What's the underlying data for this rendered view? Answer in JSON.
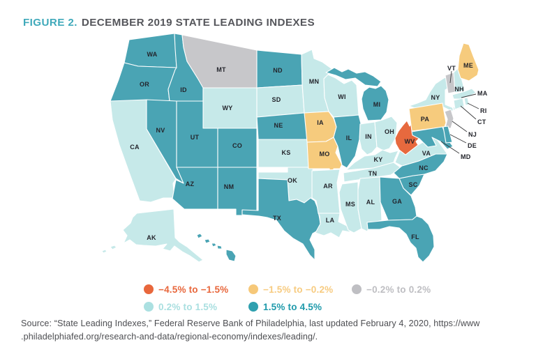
{
  "figure": {
    "label": "FIGURE 2.",
    "title": "DECEMBER 2019 STATE LEADING INDEXES",
    "accent_color": "#3fa9ba",
    "title_color": "#55565b"
  },
  "legend": {
    "items": [
      {
        "category": "neg2",
        "label": "−4.5% to −1.5%",
        "dot_color": "#e8673c",
        "text_color": "#e8673c"
      },
      {
        "category": "neg1",
        "label": "−1.5% to −0.2%",
        "dot_color": "#f6c879",
        "text_color": "#f7cb80"
      },
      {
        "category": "neutral",
        "label": "−0.2% to 0.2%",
        "dot_color": "#bfbfc3",
        "text_color": "#bebec2"
      },
      {
        "category": "pos1",
        "label": "0.2% to 1.5%",
        "dot_color": "#abe0e1",
        "text_color": "#a9dfe0"
      },
      {
        "category": "pos2",
        "label": "1.5% to 4.5%",
        "dot_color": "#2fa0af",
        "text_color": "#1f9aab"
      }
    ]
  },
  "map": {
    "state_fill_colors": {
      "neg2": "#e7693e",
      "neg1": "#f6cb7d",
      "neutral": "#c7c7ca",
      "pos1": "#c6e9e9",
      "pos2": "#4aa4b4"
    },
    "states": [
      {
        "abbr": "WA",
        "category": "pos2"
      },
      {
        "abbr": "OR",
        "category": "pos2"
      },
      {
        "abbr": "CA",
        "category": "pos1"
      },
      {
        "abbr": "ID",
        "category": "pos2"
      },
      {
        "abbr": "MT",
        "category": "neutral"
      },
      {
        "abbr": "WY",
        "category": "pos1"
      },
      {
        "abbr": "NV",
        "category": "pos2"
      },
      {
        "abbr": "UT",
        "category": "pos2"
      },
      {
        "abbr": "CO",
        "category": "pos2"
      },
      {
        "abbr": "AZ",
        "category": "pos2"
      },
      {
        "abbr": "NM",
        "category": "pos2"
      },
      {
        "abbr": "ND",
        "category": "pos2"
      },
      {
        "abbr": "SD",
        "category": "pos1"
      },
      {
        "abbr": "NE",
        "category": "pos2"
      },
      {
        "abbr": "KS",
        "category": "pos1"
      },
      {
        "abbr": "OK",
        "category": "pos1"
      },
      {
        "abbr": "TX",
        "category": "pos2"
      },
      {
        "abbr": "MN",
        "category": "pos1"
      },
      {
        "abbr": "IA",
        "category": "neg1"
      },
      {
        "abbr": "MO",
        "category": "neg1"
      },
      {
        "abbr": "AR",
        "category": "pos1"
      },
      {
        "abbr": "LA",
        "category": "pos1"
      },
      {
        "abbr": "WI",
        "category": "pos1"
      },
      {
        "abbr": "IL",
        "category": "pos2"
      },
      {
        "abbr": "MI",
        "category": "pos2"
      },
      {
        "abbr": "IN",
        "category": "pos1"
      },
      {
        "abbr": "OH",
        "category": "pos1"
      },
      {
        "abbr": "KY",
        "category": "pos1"
      },
      {
        "abbr": "TN",
        "category": "pos1"
      },
      {
        "abbr": "MS",
        "category": "pos1"
      },
      {
        "abbr": "AL",
        "category": "pos1"
      },
      {
        "abbr": "GA",
        "category": "pos2"
      },
      {
        "abbr": "FL",
        "category": "pos2"
      },
      {
        "abbr": "SC",
        "category": "pos2"
      },
      {
        "abbr": "NC",
        "category": "pos2"
      },
      {
        "abbr": "VA",
        "category": "pos1"
      },
      {
        "abbr": "WV",
        "category": "neg2"
      },
      {
        "abbr": "NY",
        "category": "pos1"
      },
      {
        "abbr": "PA",
        "category": "neg1"
      },
      {
        "abbr": "NJ",
        "category": "neutral"
      },
      {
        "abbr": "VT",
        "category": "neutral"
      },
      {
        "abbr": "NH",
        "category": "pos1"
      },
      {
        "abbr": "ME",
        "category": "neg1"
      },
      {
        "abbr": "MA",
        "category": "pos1"
      },
      {
        "abbr": "CT",
        "category": "pos1"
      },
      {
        "abbr": "RI",
        "category": "pos1"
      },
      {
        "abbr": "MD",
        "category": "pos2"
      },
      {
        "abbr": "DE",
        "category": "pos2"
      },
      {
        "abbr": "AK",
        "category": "pos1"
      },
      {
        "abbr": "HI",
        "category": "pos2"
      }
    ]
  },
  "source": {
    "line1": "Source: “State Leading Indexes,” Federal Reserve Bank of Philadelphia, last updated February 4, 2020, https://www",
    "line2": ".philadelphiafed.org/research-and-data/regional-economy/indexes/leading/."
  }
}
